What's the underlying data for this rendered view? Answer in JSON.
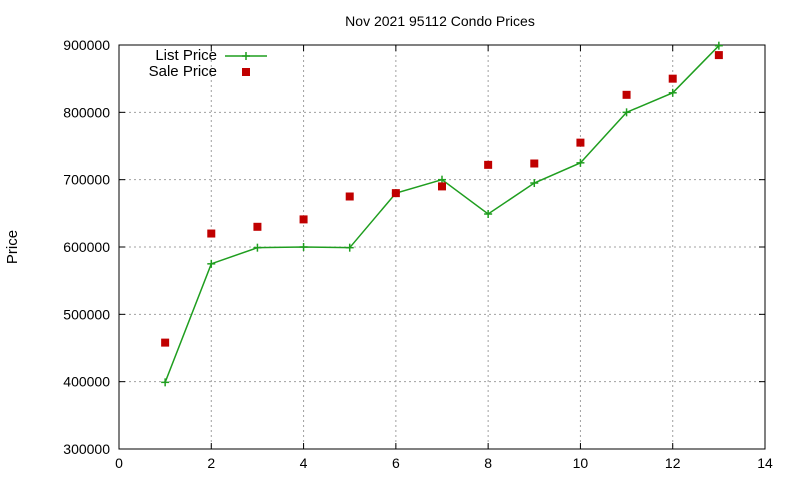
{
  "chart_data": {
    "type": "line",
    "title": "Nov 2021 95112 Condo Prices",
    "xlabel": "",
    "ylabel": "Price",
    "xlim": [
      0,
      14
    ],
    "ylim": [
      300000,
      900000
    ],
    "xticks": [
      "0",
      "2",
      "4",
      "6",
      "8",
      "10",
      "12",
      "14"
    ],
    "yticks": [
      "300000",
      "400000",
      "500000",
      "600000",
      "700000",
      "800000",
      "900000"
    ],
    "grid": true,
    "legend_position": "top-left",
    "series": [
      {
        "name": "List Price",
        "style": "line-with-plus-markers",
        "color": "#1f9e1f",
        "x": [
          1,
          2,
          3,
          4,
          5,
          6,
          7,
          8,
          9,
          10,
          11,
          12,
          13
        ],
        "y": [
          399000,
          575000,
          599000,
          600000,
          599000,
          680000,
          700000,
          649000,
          695000,
          725000,
          800000,
          829000,
          899000
        ]
      },
      {
        "name": "Sale Price",
        "style": "square-markers",
        "color": "#c00000",
        "x": [
          1,
          2,
          3,
          4,
          5,
          6,
          7,
          8,
          9,
          10,
          11,
          12,
          13
        ],
        "y": [
          458000,
          620000,
          630000,
          641000,
          675000,
          680000,
          690000,
          722000,
          724000,
          755000,
          826000,
          850000,
          885000
        ]
      }
    ]
  }
}
